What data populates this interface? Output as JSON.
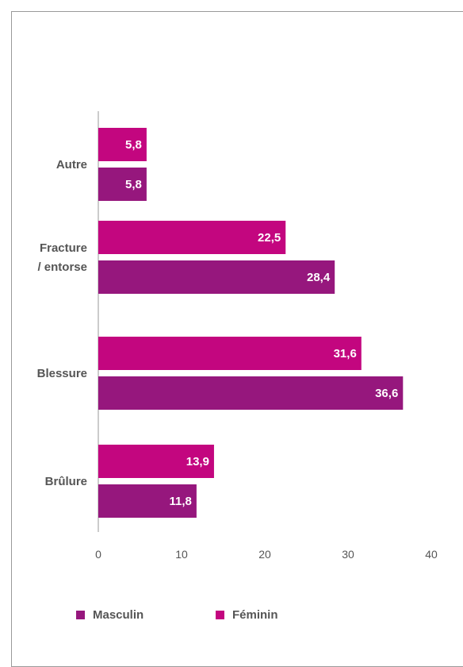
{
  "chart_data": {
    "type": "bar",
    "orientation": "horizontal",
    "categories": [
      "Autre",
      "Fracture / entorse",
      "Blessure",
      "Brûlure"
    ],
    "category_lines": [
      [
        "Autre"
      ],
      [
        "Fracture",
        "/ entorse"
      ],
      [
        "Blessure"
      ],
      [
        "Brûlure"
      ]
    ],
    "series": [
      {
        "name": "Féminin",
        "color": "#c3067f",
        "values": [
          5.8,
          22.5,
          31.6,
          13.9
        ],
        "labels": [
          "5,8",
          "22,5",
          "31,6",
          "13,9"
        ]
      },
      {
        "name": "Masculin",
        "color": "#96177d",
        "values": [
          5.8,
          28.4,
          36.6,
          11.8
        ],
        "labels": [
          "5,8",
          "28,4",
          "36,6",
          "11,8"
        ]
      }
    ],
    "xlim": [
      0,
      40
    ],
    "xticks": [
      0,
      10,
      20,
      30,
      40
    ],
    "xtick_labels": [
      "0",
      "10",
      "20",
      "30",
      "40"
    ],
    "grid": false,
    "legend_placement": "bottom-left"
  },
  "legend": [
    {
      "label": "Masculin",
      "color": "#96177d"
    },
    {
      "label": "Féminin",
      "color": "#c3067f"
    }
  ]
}
